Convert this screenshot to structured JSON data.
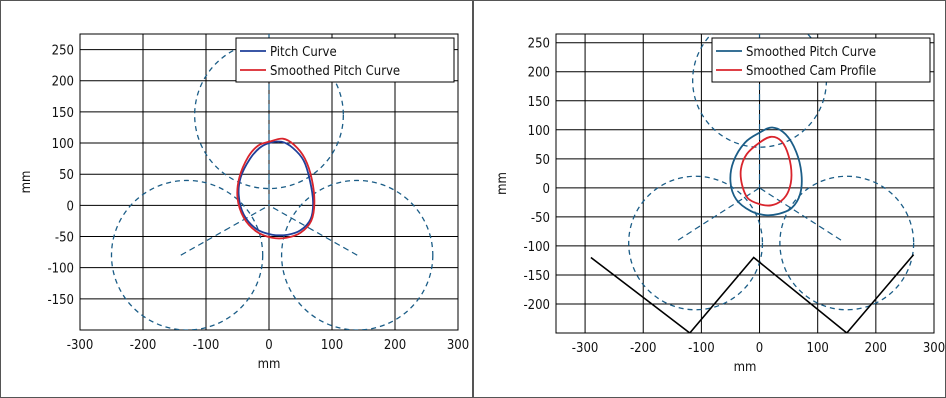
{
  "chart_data": [
    {
      "type": "line",
      "xlabel": "mm",
      "ylabel": "mm",
      "xlim": [
        -300,
        300
      ],
      "ylim": [
        -200,
        275
      ],
      "xticks": [
        -300,
        -200,
        -100,
        0,
        100,
        200,
        300
      ],
      "yticks": [
        -150,
        -100,
        -50,
        0,
        50,
        100,
        150,
        200,
        250
      ],
      "grid": true,
      "legend_position": "top-right",
      "series": [
        {
          "name": "Pitch Curve",
          "color": "#1f3f99",
          "style": "solid",
          "points": [
            [
              0,
              100
            ],
            [
              20,
              102
            ],
            [
              38,
              92
            ],
            [
              55,
              72
            ],
            [
              65,
              40
            ],
            [
              70,
              5
            ],
            [
              66,
              -22
            ],
            [
              50,
              -40
            ],
            [
              30,
              -47
            ],
            [
              5,
              -47
            ],
            [
              -20,
              -38
            ],
            [
              -40,
              -15
            ],
            [
              -48,
              15
            ],
            [
              -45,
              45
            ],
            [
              -30,
              75
            ],
            [
              -15,
              92
            ],
            [
              0,
              100
            ]
          ]
        },
        {
          "name": "Smoothed Pitch Curve",
          "color": "#d9242c",
          "style": "solid",
          "points": [
            [
              0,
              102
            ],
            [
              22,
              107
            ],
            [
              40,
              97
            ],
            [
              57,
              75
            ],
            [
              68,
              42
            ],
            [
              72,
              5
            ],
            [
              67,
              -25
            ],
            [
              50,
              -44
            ],
            [
              28,
              -52
            ],
            [
              5,
              -52
            ],
            [
              -20,
              -42
            ],
            [
              -40,
              -20
            ],
            [
              -50,
              12
            ],
            [
              -47,
              45
            ],
            [
              -33,
              78
            ],
            [
              -17,
              96
            ],
            [
              0,
              102
            ]
          ]
        }
      ],
      "guide_circles": [
        {
          "cx": 0,
          "cy": 145,
          "r": 118
        },
        {
          "cx": -130,
          "cy": -80,
          "r": 120
        },
        {
          "cx": 140,
          "cy": -80,
          "r": 120
        }
      ],
      "guide_lines": [
        [
          [
            0,
            275
          ],
          [
            0,
            0
          ]
        ],
        [
          [
            -70,
            -40
          ],
          [
            0,
            0
          ]
        ],
        [
          [
            70,
            -40
          ],
          [
            0,
            0
          ]
        ],
        [
          [
            -140,
            -80
          ],
          [
            -70,
            -40
          ]
        ],
        [
          [
            140,
            -80
          ],
          [
            70,
            -40
          ]
        ]
      ],
      "guide_color": "#1b5d87"
    },
    {
      "type": "line",
      "xlabel": "mm",
      "ylabel": "mm",
      "xlim": [
        -350,
        300
      ],
      "ylim": [
        -250,
        265
      ],
      "xticks": [
        -300,
        -200,
        -100,
        0,
        100,
        200,
        300
      ],
      "yticks": [
        -200,
        -150,
        -100,
        -50,
        0,
        50,
        100,
        150,
        200,
        250
      ],
      "grid": true,
      "legend_position": "top-right",
      "series": [
        {
          "name": "Smoothed Pitch Curve",
          "color": "#1b5d87",
          "style": "solid",
          "points": [
            [
              0,
              95
            ],
            [
              22,
              104
            ],
            [
              45,
              92
            ],
            [
              63,
              62
            ],
            [
              72,
              25
            ],
            [
              70,
              -10
            ],
            [
              55,
              -35
            ],
            [
              32,
              -45
            ],
            [
              10,
              -47
            ],
            [
              -15,
              -40
            ],
            [
              -40,
              -20
            ],
            [
              -50,
              10
            ],
            [
              -45,
              45
            ],
            [
              -25,
              78
            ],
            [
              0,
              95
            ]
          ]
        },
        {
          "name": "Smoothed Cam Profile",
          "color": "#d9242c",
          "style": "solid",
          "points": [
            [
              0,
              78
            ],
            [
              20,
              88
            ],
            [
              38,
              80
            ],
            [
              50,
              55
            ],
            [
              55,
              22
            ],
            [
              50,
              -5
            ],
            [
              38,
              -22
            ],
            [
              20,
              -30
            ],
            [
              0,
              -28
            ],
            [
              -20,
              -18
            ],
            [
              -30,
              5
            ],
            [
              -32,
              32
            ],
            [
              -22,
              58
            ],
            [
              0,
              78
            ]
          ]
        }
      ],
      "guide_circles": [
        {
          "cx": 0,
          "cy": 185,
          "r": 115
        },
        {
          "cx": -110,
          "cy": -95,
          "r": 115
        },
        {
          "cx": 150,
          "cy": -95,
          "r": 115
        }
      ],
      "guide_lines": [
        [
          [
            0,
            265
          ],
          [
            0,
            0
          ]
        ],
        [
          [
            -140,
            -90
          ],
          [
            0,
            0
          ]
        ],
        [
          [
            140,
            -90
          ],
          [
            0,
            0
          ]
        ]
      ],
      "guide_color": "#1b5d87",
      "black_line": [
        [
          -290,
          -120
        ],
        [
          -120,
          -250
        ],
        [
          -10,
          -120
        ],
        [
          150,
          -250
        ],
        [
          265,
          -115
        ]
      ]
    }
  ]
}
